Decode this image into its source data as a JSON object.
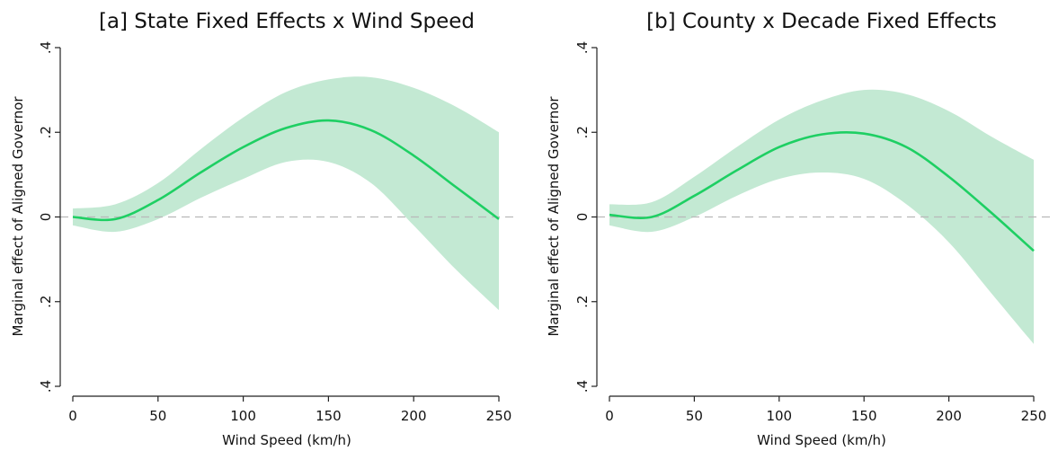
{
  "chart_data": [
    {
      "type": "line",
      "title": "[a] State Fixed Effects x Wind Speed",
      "xlabel": "Wind Speed (km/h)",
      "ylabel": "Marginal effect of Aligned Governor",
      "xlim": [
        0,
        250
      ],
      "ylim": [
        -0.4,
        0.4
      ],
      "xticks": [
        0,
        50,
        100,
        150,
        200,
        250
      ],
      "xtick_labels": [
        "0",
        "50",
        "100",
        "150",
        "200",
        "250"
      ],
      "yticks": [
        -0.4,
        -0.2,
        0,
        0.2,
        0.4
      ],
      "ytick_labels": [
        ".4",
        ".2",
        "0",
        ".2",
        ".4"
      ],
      "reference_line": {
        "y": 0,
        "style": "dashed",
        "color": "#b8b8b8"
      },
      "grid": false,
      "legend": "none",
      "colors": {
        "line": "#1ecf63",
        "band": "#c3e9d3"
      },
      "x": [
        0,
        25,
        50,
        75,
        100,
        125,
        150,
        175,
        200,
        225,
        250
      ],
      "series": [
        {
          "role": "estimate",
          "values": [
            0.0,
            -0.005,
            0.04,
            0.105,
            0.165,
            0.21,
            0.228,
            0.205,
            0.145,
            0.07,
            -0.005
          ]
        },
        {
          "role": "ci_upper",
          "values": [
            0.02,
            0.03,
            0.08,
            0.16,
            0.235,
            0.295,
            0.325,
            0.33,
            0.305,
            0.26,
            0.2
          ]
        },
        {
          "role": "ci_lower",
          "values": [
            -0.02,
            -0.035,
            -0.005,
            0.045,
            0.09,
            0.13,
            0.13,
            0.08,
            -0.02,
            -0.125,
            -0.22
          ]
        }
      ]
    },
    {
      "type": "line",
      "title": "[b] County x Decade Fixed Effects",
      "xlabel": "Wind Speed (km/h)",
      "ylabel": "Marginal effect of Aligned Governor",
      "xlim": [
        0,
        250
      ],
      "ylim": [
        -0.4,
        0.4
      ],
      "xticks": [
        0,
        50,
        100,
        150,
        200,
        250
      ],
      "xtick_labels": [
        "0",
        "50",
        "100",
        "150",
        "200",
        "250"
      ],
      "yticks": [
        -0.4,
        -0.2,
        0,
        0.2,
        0.4
      ],
      "ytick_labels": [
        ".4",
        ".2",
        "0",
        ".2",
        ".4"
      ],
      "reference_line": {
        "y": 0,
        "style": "dashed",
        "color": "#b8b8b8"
      },
      "grid": false,
      "legend": "none",
      "colors": {
        "line": "#1ecf63",
        "band": "#c3e9d3"
      },
      "x": [
        0,
        25,
        50,
        75,
        100,
        125,
        150,
        175,
        200,
        225,
        250
      ],
      "series": [
        {
          "role": "estimate",
          "values": [
            0.005,
            0.0,
            0.05,
            0.11,
            0.165,
            0.195,
            0.197,
            0.165,
            0.095,
            0.01,
            -0.08
          ]
        },
        {
          "role": "ci_upper",
          "values": [
            0.03,
            0.035,
            0.095,
            0.165,
            0.23,
            0.275,
            0.3,
            0.29,
            0.25,
            0.19,
            0.135
          ]
        },
        {
          "role": "ci_lower",
          "values": [
            -0.02,
            -0.035,
            0.0,
            0.05,
            0.09,
            0.105,
            0.09,
            0.03,
            -0.06,
            -0.18,
            -0.3
          ]
        }
      ]
    }
  ]
}
